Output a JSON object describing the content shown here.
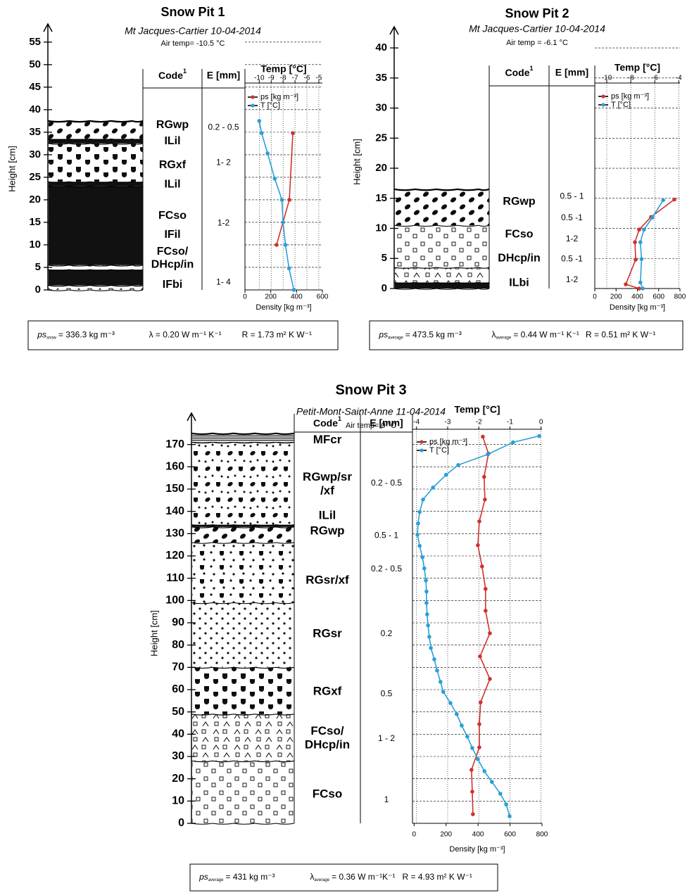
{
  "chart_data": [
    {
      "type": "snowpit",
      "title": "Snow Pit 1",
      "subtitle": "Mt Jacques-Cartier 10-04-2014",
      "air_temp": "Air temp= -10.5 °C",
      "y_label": "Height [cm]",
      "ylim": [
        0,
        57
      ],
      "yticks": [
        0,
        5,
        10,
        15,
        20,
        25,
        30,
        35,
        40,
        45,
        50,
        55
      ],
      "code_header": "Code",
      "code_note": "1",
      "e_header": "E [mm]",
      "boundaries": [
        0,
        1,
        4.5,
        5.5,
        23,
        24,
        32.5,
        33.5,
        37.5
      ],
      "codes": [
        {
          "label": "RGwp",
          "height": 36.6
        },
        {
          "label": "ILil",
          "height": 33
        },
        {
          "label": "RGxf",
          "height": 27.7
        },
        {
          "label": "ILil",
          "height": 23.4
        },
        {
          "label": "FCso",
          "height": 16.4
        },
        {
          "label": "IFil",
          "height": 12.2
        },
        {
          "label": "FCso/\nDHcp/in",
          "height": 7
        },
        {
          "label": "IFbi",
          "height": 1.1
        }
      ],
      "grain_sizes": [
        {
          "label": "0.2 - 0.5",
          "height": 36
        },
        {
          "label": "1- 2",
          "height": 28.2
        },
        {
          "label": "1-2",
          "height": 14.8
        },
        {
          "label": "1- 4",
          "height": 1.7
        }
      ],
      "temp_label": "Temp [°C]",
      "temp_xlim": [
        -11.2,
        -4.7
      ],
      "temp_xticks": [
        -10,
        -9,
        -8,
        -7,
        -6,
        -5
      ],
      "x_label": "Density [kg m⁻³]",
      "xlim": [
        0,
        600
      ],
      "xticks": [
        0,
        200,
        400,
        600
      ],
      "grid": true,
      "series": [
        {
          "name": "ps [kg m⁻³]",
          "color": "#d0312d",
          "heights": [
            34.8,
            20,
            10
          ],
          "values": [
            371,
            344,
            245
          ]
        },
        {
          "name": "T [°C]",
          "color": "#2a9fd6",
          "axis": "temp",
          "heights": [
            37.5,
            34.8,
            30.3,
            24.7,
            20,
            15,
            10,
            4.8,
            0
          ],
          "values": [
            -10,
            -9.8,
            -9.3,
            -8.7,
            -8.1,
            -8.0,
            -7.8,
            -7.5,
            -7.1
          ]
        }
      ],
      "summary": [
        [
          {
            "text": "ps",
            "sub": "snow"
          },
          {
            "text": "= 336.3 kg m⁻³"
          }
        ],
        [
          {
            "text": "λ = 0.20 W m⁻¹ K⁻¹"
          }
        ],
        [
          {
            "text": "R = 1.73 m² K W⁻¹"
          }
        ]
      ]
    },
    {
      "type": "snowpit",
      "title": "Snow Pit 2",
      "subtitle": "Mt Jacques-Cartier 10-04-2014",
      "air_temp": "Air temp = -6.1 °C",
      "y_label": "Height [cm]",
      "ylim": [
        0,
        42
      ],
      "yticks": [
        0,
        5,
        10,
        15,
        20,
        25,
        30,
        35,
        40
      ],
      "code_header": "Code",
      "code_note": "1",
      "e_header": "E [mm]",
      "boundaries": [
        0,
        1,
        3.5,
        10.5,
        16.5
      ],
      "codes": [
        {
          "label": "RGwp",
          "height": 14.4
        },
        {
          "label": "FCso",
          "height": 9
        },
        {
          "label": "DHcp/in",
          "height": 5
        },
        {
          "label": "ILbi",
          "height": 0.9
        }
      ],
      "grain_sizes": [
        {
          "label": "0.5 - 1",
          "height": 15.3
        },
        {
          "label": "0.5 -1",
          "height": 11.7
        },
        {
          "label": "1-2",
          "height": 8.2
        },
        {
          "label": "0.5 -1",
          "height": 4.9
        },
        {
          "label": "1-2",
          "height": 1.4
        }
      ],
      "temp_label": "Temp [°C]",
      "temp_xlim": [
        -11,
        -3.9
      ],
      "temp_xticks": [
        -10,
        -8,
        -6,
        -4
      ],
      "x_label": "Density [kg m⁻³]",
      "xlim": [
        0,
        800
      ],
      "xticks": [
        0,
        200,
        400,
        600,
        800
      ],
      "grid": true,
      "series": [
        {
          "name": "ps [kg m⁻³]",
          "color": "#d0312d",
          "heights": [
            14.8,
            11.9,
            9.8,
            7.7,
            4.8,
            0.7,
            0
          ],
          "values": [
            747,
            529,
            417,
            377,
            384,
            291,
            417
          ]
        },
        {
          "name": "T [°C]",
          "color": "#2a9fd6",
          "axis": "temp",
          "heights": [
            14.7,
            11.8,
            9.8,
            7.7,
            4.9,
            1,
            0
          ],
          "values": [
            -5.3,
            -6.2,
            -6.9,
            -7.2,
            -7.1,
            -7.2,
            -7.0
          ]
        }
      ],
      "summary": [
        [
          {
            "text": "ps",
            "sub": "average"
          },
          {
            "text": "= 473.5 kg m⁻³"
          }
        ],
        [
          {
            "text": "λ",
            "sub": "average"
          },
          {
            "text": "= 0.44 W m⁻¹ K⁻¹"
          }
        ],
        [
          {
            "text": "R = 0.51 m² K W⁻¹"
          }
        ]
      ]
    },
    {
      "type": "snowpit",
      "title": "Snow Pit 3",
      "subtitle": "Petit-Mont-Saint-Anne 11-04-2014",
      "air_temp": "Air temp= 0 °C",
      "y_label": "Height [cm]",
      "ylim": [
        0,
        180
      ],
      "yticks": [
        0,
        10,
        20,
        30,
        40,
        50,
        60,
        70,
        80,
        90,
        100,
        110,
        120,
        130,
        140,
        150,
        160,
        170
      ],
      "code_header": "Code",
      "code_note": "1",
      "e_header": "E [mm]",
      "boundaries": [
        0,
        28,
        49,
        70,
        99,
        126,
        133,
        134,
        171,
        175
      ],
      "codes": [
        {
          "label": "MFcr",
          "height": 172
        },
        {
          "label": "RGwp/sr\n/xf",
          "height": 152
        },
        {
          "label": "ILil",
          "height": 138
        },
        {
          "label": "RGwp",
          "height": 131
        },
        {
          "label": "RGsr/xf",
          "height": 109
        },
        {
          "label": "RGsr",
          "height": 85
        },
        {
          "label": "RGxf",
          "height": 59
        },
        {
          "label": "FCso/\nDHcp/in",
          "height": 38
        },
        {
          "label": "FCso",
          "height": 13
        }
      ],
      "grain_sizes": [
        {
          "label": "0.2 - 0.5",
          "height": 152.6
        },
        {
          "label": "0.5 - 1",
          "height": 129
        },
        {
          "label": "0.2 - 0.5",
          "height": 114
        },
        {
          "label": "0.2",
          "height": 85
        },
        {
          "label": "0.5",
          "height": 58
        },
        {
          "label": "1 - 2",
          "height": 38
        },
        {
          "label": "1",
          "height": 10.4
        }
      ],
      "temp_label": "Temp [°C]",
      "temp_xlim": [
        -4.13,
        0.03
      ],
      "temp_xticks": [
        -4,
        -3,
        -2,
        -1,
        0
      ],
      "x_label": "Density [kg m⁻³]",
      "xlim": [
        -10,
        800
      ],
      "xticks": [
        0,
        200,
        400,
        600,
        800
      ],
      "grid": true,
      "series": [
        {
          "name": "ps [kg m⁻³]",
          "color": "#d0312d",
          "heights": [
            173.5,
            165.9,
            155.5,
            145.3,
            135.5,
            124.8,
            115.3,
            105.2,
            95.4,
            85.3,
            74.9,
            64.8,
            54.3,
            44.5,
            34.1,
            24,
            14.2,
            4.1
          ],
          "values": [
            430,
            465,
            438,
            443,
            408,
            399,
            425,
            447,
            447,
            474,
            412,
            474,
            416,
            408,
            408,
            359,
            364,
            368
          ]
        },
        {
          "name": "T [°C]",
          "color": "#2a9fd6",
          "axis": "temp",
          "heights": [
            173.8,
            171,
            165.6,
            160.8,
            156.4,
            150.7,
            145.3,
            139.7,
            134.6,
            129.5,
            124.5,
            119.4,
            114.4,
            109,
            104,
            98.9,
            93.8,
            88.8,
            83.7,
            78.7,
            73.6,
            68.6,
            63.5,
            59,
            54,
            49,
            43.9,
            38.9,
            33.8,
            28.8,
            23.4,
            18.6,
            13.3,
            8.5,
            3.2
          ],
          "values": [
            -0.06,
            -0.9,
            -1.71,
            -2.66,
            -3.05,
            -3.47,
            -3.79,
            -3.9,
            -3.95,
            -3.97,
            -3.9,
            -3.81,
            -3.75,
            -3.7,
            -3.68,
            -3.68,
            -3.66,
            -3.63,
            -3.59,
            -3.54,
            -3.43,
            -3.34,
            -3.23,
            -3.14,
            -2.91,
            -2.71,
            -2.55,
            -2.37,
            -2.21,
            -2.03,
            -1.82,
            -1.58,
            -1.31,
            -1.12,
            -1.01
          ]
        }
      ],
      "summary": [
        [
          {
            "text": "ps",
            "sub": "average"
          },
          {
            "text": "= 431 kg m⁻³"
          }
        ],
        [
          {
            "text": "λ",
            "sub": "average"
          },
          {
            "text": "= 0.36 W m⁻¹K⁻¹"
          }
        ],
        [
          {
            "text": "R = 4.93 m² K W⁻¹"
          }
        ]
      ]
    }
  ]
}
